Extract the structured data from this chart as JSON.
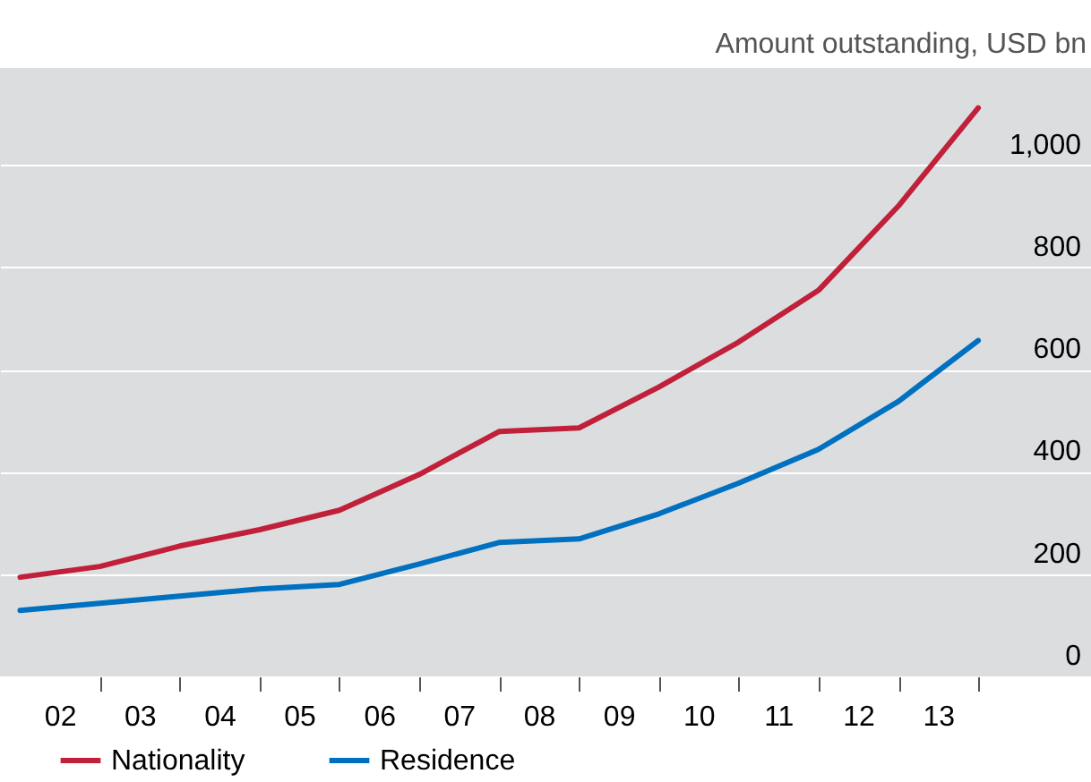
{
  "chart_data": {
    "type": "line",
    "ylabel": "Amount outstanding, USD bn",
    "x": [
      "2002-01",
      "2003-01",
      "2004-01",
      "2005-01",
      "2006-01",
      "2007-01",
      "2008-01",
      "2009-01",
      "2010-01",
      "2011-01",
      "2012-01",
      "2013-01",
      "2014-01"
    ],
    "series": [
      {
        "name": "Nationality",
        "color": "#c0203a",
        "values": [
          194,
          215,
          255,
          287,
          325,
          395,
          479,
          486,
          566,
          654,
          755,
          920,
          1112
        ]
      },
      {
        "name": "Residence",
        "color": "#0070c0",
        "values": [
          129,
          143,
          157,
          171,
          180,
          220,
          262,
          269,
          318,
          378,
          444,
          538,
          657
        ]
      }
    ],
    "xlim": [
      "2001-10",
      "2015-06"
    ],
    "xticks": [
      {
        "value": "2002-07",
        "label": "02"
      },
      {
        "value": "2003-01",
        "label": null
      },
      {
        "value": "2003-07",
        "label": "03"
      },
      {
        "value": "2004-01",
        "label": null
      },
      {
        "value": "2004-07",
        "label": "04"
      },
      {
        "value": "2005-01",
        "label": null
      },
      {
        "value": "2005-07",
        "label": "05"
      },
      {
        "value": "2006-01",
        "label": null
      },
      {
        "value": "2006-07",
        "label": "06"
      },
      {
        "value": "2007-01",
        "label": null
      },
      {
        "value": "2007-07",
        "label": "07"
      },
      {
        "value": "2008-01",
        "label": null
      },
      {
        "value": "2008-07",
        "label": "08"
      },
      {
        "value": "2009-01",
        "label": null
      },
      {
        "value": "2009-07",
        "label": "09"
      },
      {
        "value": "2010-01",
        "label": null
      },
      {
        "value": "2010-07",
        "label": "10"
      },
      {
        "value": "2011-01",
        "label": null
      },
      {
        "value": "2011-07",
        "label": "11"
      },
      {
        "value": "2012-01",
        "label": null
      },
      {
        "value": "2012-07",
        "label": "12"
      },
      {
        "value": "2013-01",
        "label": null
      },
      {
        "value": "2013-07",
        "label": "13"
      },
      {
        "value": "2014-01",
        "label": null
      }
    ],
    "ylim": [
      0,
      1190
    ],
    "yticks": [
      0,
      200,
      400,
      600,
      800,
      {
        "value": 1000,
        "label": "1,000"
      }
    ],
    "grid": "y",
    "legend": "bottom left",
    "line_style": "solid",
    "marker": "none"
  }
}
